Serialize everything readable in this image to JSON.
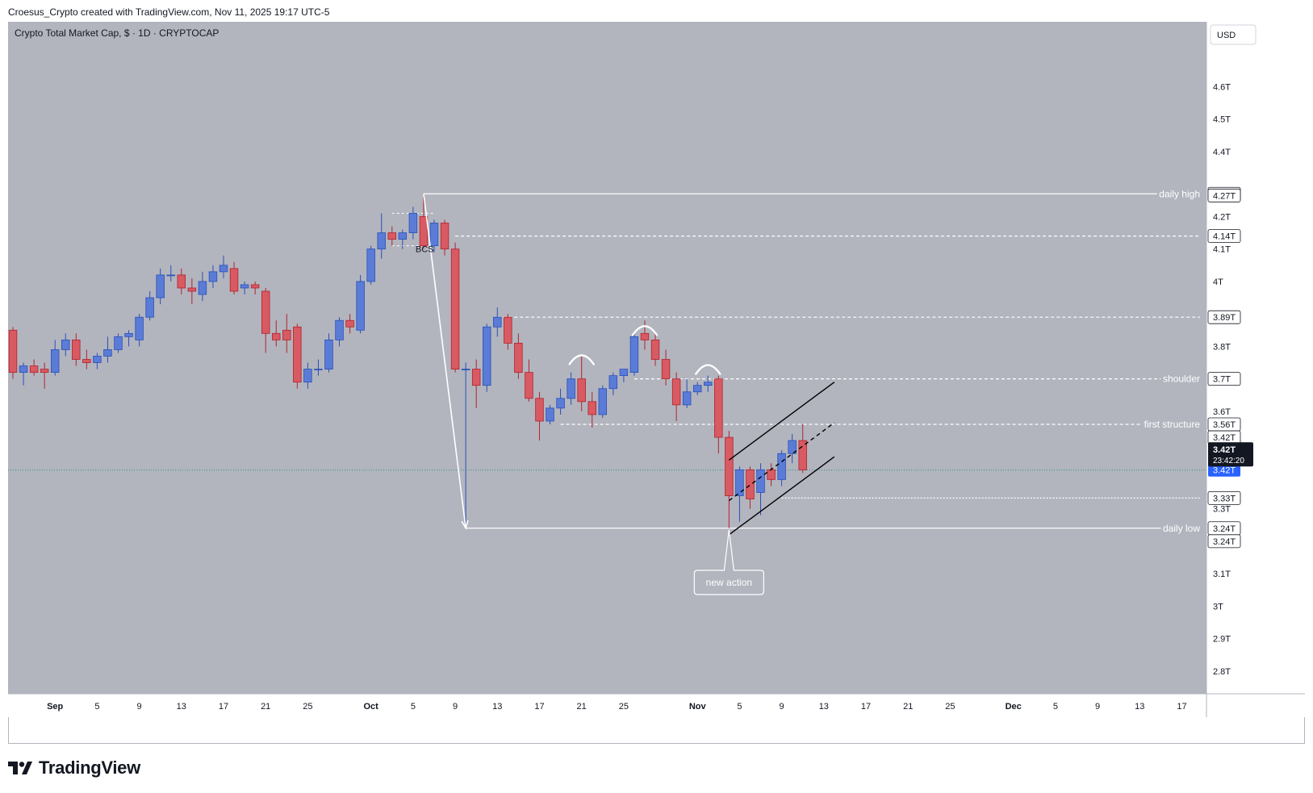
{
  "header": {
    "caption": "Croesus_Crypto created with TradingView.com, Nov 11, 2025 19:17 UTC-5"
  },
  "footer": {
    "brand": "TradingView"
  },
  "colors": {
    "background": "#b2b5be",
    "bull_fill": "#5b7cd6",
    "bull_line": "#2a4fb8",
    "bear_fill": "#d85a62",
    "bear_line": "#b2222c",
    "level_line": "#ffffff",
    "channel": "#000000",
    "current_price_badge": "#2962ff",
    "countdown_badge": "#131722"
  },
  "chart_data": {
    "type": "candlestick",
    "title": "Crypto Total Market Cap, $ · 1D · CRYPTOCAP",
    "currency_button": "USD",
    "ylim": [
      2.73,
      4.8
    ],
    "y_ticks": [
      {
        "value": 4.6,
        "label": "4.6T"
      },
      {
        "value": 4.5,
        "label": "4.5T"
      },
      {
        "value": 4.4,
        "label": "4.4T"
      },
      {
        "value": 4.2,
        "label": "4.2T"
      },
      {
        "value": 4.1,
        "label": "4.1T"
      },
      {
        "value": 4.0,
        "label": "4T"
      },
      {
        "value": 3.8,
        "label": "3.8T"
      },
      {
        "value": 3.6,
        "label": "3.6T"
      },
      {
        "value": 3.3,
        "label": "3.3T"
      },
      {
        "value": 3.1,
        "label": "3.1T"
      },
      {
        "value": 3.0,
        "label": "3T"
      },
      {
        "value": 2.9,
        "label": "2.9T"
      },
      {
        "value": 2.8,
        "label": "2.8T"
      }
    ],
    "x_ticks": [
      {
        "date": "2025-09-01",
        "label": "Sep"
      },
      {
        "date": "2025-09-05",
        "label": "5"
      },
      {
        "date": "2025-09-09",
        "label": "9"
      },
      {
        "date": "2025-09-13",
        "label": "13"
      },
      {
        "date": "2025-09-17",
        "label": "17"
      },
      {
        "date": "2025-09-21",
        "label": "21"
      },
      {
        "date": "2025-09-25",
        "label": "25"
      },
      {
        "date": "2025-10-01",
        "label": "Oct"
      },
      {
        "date": "2025-10-05",
        "label": "5"
      },
      {
        "date": "2025-10-09",
        "label": "9"
      },
      {
        "date": "2025-10-13",
        "label": "13"
      },
      {
        "date": "2025-10-17",
        "label": "17"
      },
      {
        "date": "2025-10-21",
        "label": "21"
      },
      {
        "date": "2025-10-25",
        "label": "25"
      },
      {
        "date": "2025-11-01",
        "label": "Nov"
      },
      {
        "date": "2025-11-05",
        "label": "5"
      },
      {
        "date": "2025-11-09",
        "label": "9"
      },
      {
        "date": "2025-11-13",
        "label": "13"
      },
      {
        "date": "2025-11-17",
        "label": "17"
      },
      {
        "date": "2025-11-21",
        "label": "21"
      },
      {
        "date": "2025-11-25",
        "label": "25"
      },
      {
        "date": "2025-12-01",
        "label": "Dec"
      },
      {
        "date": "2025-12-05",
        "label": "5"
      },
      {
        "date": "2025-12-09",
        "label": "9"
      },
      {
        "date": "2025-12-13",
        "label": "13"
      },
      {
        "date": "2025-12-17",
        "label": "17"
      }
    ],
    "candles": [
      {
        "date": "2025-08-28",
        "open": 3.85,
        "high": 3.86,
        "low": 3.7,
        "close": 3.72
      },
      {
        "date": "2025-08-29",
        "open": 3.72,
        "high": 3.75,
        "low": 3.68,
        "close": 3.74
      },
      {
        "date": "2025-08-30",
        "open": 3.74,
        "high": 3.76,
        "low": 3.71,
        "close": 3.72
      },
      {
        "date": "2025-08-31",
        "open": 3.73,
        "high": 3.75,
        "low": 3.67,
        "close": 3.72
      },
      {
        "date": "2025-09-01",
        "open": 3.72,
        "high": 3.82,
        "low": 3.71,
        "close": 3.79
      },
      {
        "date": "2025-09-02",
        "open": 3.79,
        "high": 3.84,
        "low": 3.77,
        "close": 3.82
      },
      {
        "date": "2025-09-03",
        "open": 3.82,
        "high": 3.84,
        "low": 3.74,
        "close": 3.76
      },
      {
        "date": "2025-09-04",
        "open": 3.76,
        "high": 3.79,
        "low": 3.73,
        "close": 3.75
      },
      {
        "date": "2025-09-05",
        "open": 3.75,
        "high": 3.78,
        "low": 3.73,
        "close": 3.77
      },
      {
        "date": "2025-09-06",
        "open": 3.77,
        "high": 3.83,
        "low": 3.75,
        "close": 3.79
      },
      {
        "date": "2025-09-07",
        "open": 3.79,
        "high": 3.84,
        "low": 3.78,
        "close": 3.83
      },
      {
        "date": "2025-09-08",
        "open": 3.83,
        "high": 3.85,
        "low": 3.8,
        "close": 3.84
      },
      {
        "date": "2025-09-09",
        "open": 3.82,
        "high": 3.9,
        "low": 3.8,
        "close": 3.89
      },
      {
        "date": "2025-09-10",
        "open": 3.89,
        "high": 3.97,
        "low": 3.88,
        "close": 3.95
      },
      {
        "date": "2025-09-11",
        "open": 3.95,
        "high": 4.04,
        "low": 3.93,
        "close": 4.02
      },
      {
        "date": "2025-09-12",
        "open": 4.02,
        "high": 4.05,
        "low": 4.0,
        "close": 4.02
      },
      {
        "date": "2025-09-13",
        "open": 4.02,
        "high": 4.04,
        "low": 3.96,
        "close": 3.98
      },
      {
        "date": "2025-09-14",
        "open": 3.98,
        "high": 4.01,
        "low": 3.93,
        "close": 3.97
      },
      {
        "date": "2025-09-15",
        "open": 3.96,
        "high": 4.03,
        "low": 3.94,
        "close": 4.0
      },
      {
        "date": "2025-09-16",
        "open": 4.0,
        "high": 4.05,
        "low": 3.98,
        "close": 4.03
      },
      {
        "date": "2025-09-17",
        "open": 4.03,
        "high": 4.08,
        "low": 4.01,
        "close": 4.05
      },
      {
        "date": "2025-09-18",
        "open": 4.04,
        "high": 4.06,
        "low": 3.96,
        "close": 3.97
      },
      {
        "date": "2025-09-19",
        "open": 3.98,
        "high": 4.0,
        "low": 3.96,
        "close": 3.99
      },
      {
        "date": "2025-09-20",
        "open": 3.99,
        "high": 4.0,
        "low": 3.96,
        "close": 3.98
      },
      {
        "date": "2025-09-21",
        "open": 3.97,
        "high": 3.98,
        "low": 3.78,
        "close": 3.84
      },
      {
        "date": "2025-09-22",
        "open": 3.84,
        "high": 3.88,
        "low": 3.8,
        "close": 3.82
      },
      {
        "date": "2025-09-23",
        "open": 3.85,
        "high": 3.9,
        "low": 3.78,
        "close": 3.82
      },
      {
        "date": "2025-09-24",
        "open": 3.86,
        "high": 3.87,
        "low": 3.67,
        "close": 3.69
      },
      {
        "date": "2025-09-25",
        "open": 3.69,
        "high": 3.75,
        "low": 3.67,
        "close": 3.73
      },
      {
        "date": "2025-09-26",
        "open": 3.73,
        "high": 3.76,
        "low": 3.71,
        "close": 3.73
      },
      {
        "date": "2025-09-27",
        "open": 3.73,
        "high": 3.84,
        "low": 3.72,
        "close": 3.82
      },
      {
        "date": "2025-09-28",
        "open": 3.82,
        "high": 3.89,
        "low": 3.8,
        "close": 3.88
      },
      {
        "date": "2025-09-29",
        "open": 3.88,
        "high": 3.9,
        "low": 3.84,
        "close": 3.86
      },
      {
        "date": "2025-09-30",
        "open": 3.85,
        "high": 4.02,
        "low": 3.84,
        "close": 4.0
      },
      {
        "date": "2025-10-01",
        "open": 4.0,
        "high": 4.11,
        "low": 3.99,
        "close": 4.1
      },
      {
        "date": "2025-10-02",
        "open": 4.1,
        "high": 4.21,
        "low": 4.07,
        "close": 4.15
      },
      {
        "date": "2025-10-03",
        "open": 4.15,
        "high": 4.17,
        "low": 4.11,
        "close": 4.13
      },
      {
        "date": "2025-10-04",
        "open": 4.13,
        "high": 4.16,
        "low": 4.1,
        "close": 4.15
      },
      {
        "date": "2025-10-05",
        "open": 4.15,
        "high": 4.23,
        "low": 4.13,
        "close": 4.21
      },
      {
        "date": "2025-10-06",
        "open": 4.2,
        "high": 4.27,
        "low": 4.1,
        "close": 4.11
      },
      {
        "date": "2025-10-07",
        "open": 4.11,
        "high": 4.19,
        "low": 4.09,
        "close": 4.18
      },
      {
        "date": "2025-10-08",
        "open": 4.18,
        "high": 4.19,
        "low": 4.08,
        "close": 4.1
      },
      {
        "date": "2025-10-09",
        "open": 4.1,
        "high": 4.12,
        "low": 3.72,
        "close": 3.73
      },
      {
        "date": "2025-10-10",
        "open": 3.73,
        "high": 3.75,
        "low": 3.24,
        "close": 3.73
      },
      {
        "date": "2025-10-11",
        "open": 3.73,
        "high": 3.76,
        "low": 3.61,
        "close": 3.68
      },
      {
        "date": "2025-10-12",
        "open": 3.68,
        "high": 3.87,
        "low": 3.66,
        "close": 3.86
      },
      {
        "date": "2025-10-13",
        "open": 3.86,
        "high": 3.92,
        "low": 3.83,
        "close": 3.89
      },
      {
        "date": "2025-10-14",
        "open": 3.89,
        "high": 3.9,
        "low": 3.79,
        "close": 3.81
      },
      {
        "date": "2025-10-15",
        "open": 3.81,
        "high": 3.84,
        "low": 3.7,
        "close": 3.72
      },
      {
        "date": "2025-10-16",
        "open": 3.72,
        "high": 3.76,
        "low": 3.63,
        "close": 3.64
      },
      {
        "date": "2025-10-17",
        "open": 3.64,
        "high": 3.66,
        "low": 3.51,
        "close": 3.57
      },
      {
        "date": "2025-10-18",
        "open": 3.57,
        "high": 3.62,
        "low": 3.56,
        "close": 3.61
      },
      {
        "date": "2025-10-19",
        "open": 3.61,
        "high": 3.67,
        "low": 3.59,
        "close": 3.64
      },
      {
        "date": "2025-10-20",
        "open": 3.64,
        "high": 3.72,
        "low": 3.62,
        "close": 3.7
      },
      {
        "date": "2025-10-21",
        "open": 3.7,
        "high": 3.77,
        "low": 3.6,
        "close": 3.63
      },
      {
        "date": "2025-10-22",
        "open": 3.63,
        "high": 3.66,
        "low": 3.55,
        "close": 3.59
      },
      {
        "date": "2025-10-23",
        "open": 3.59,
        "high": 3.68,
        "low": 3.58,
        "close": 3.67
      },
      {
        "date": "2025-10-24",
        "open": 3.67,
        "high": 3.72,
        "low": 3.65,
        "close": 3.71
      },
      {
        "date": "2025-10-25",
        "open": 3.71,
        "high": 3.73,
        "low": 3.69,
        "close": 3.73
      },
      {
        "date": "2025-10-26",
        "open": 3.72,
        "high": 3.84,
        "low": 3.71,
        "close": 3.83
      },
      {
        "date": "2025-10-27",
        "open": 3.84,
        "high": 3.88,
        "low": 3.79,
        "close": 3.82
      },
      {
        "date": "2025-10-28",
        "open": 3.82,
        "high": 3.84,
        "low": 3.74,
        "close": 3.76
      },
      {
        "date": "2025-10-29",
        "open": 3.76,
        "high": 3.79,
        "low": 3.68,
        "close": 3.7
      },
      {
        "date": "2025-10-30",
        "open": 3.7,
        "high": 3.72,
        "low": 3.57,
        "close": 3.62
      },
      {
        "date": "2025-10-31",
        "open": 3.62,
        "high": 3.7,
        "low": 3.61,
        "close": 3.66
      },
      {
        "date": "2025-11-01",
        "open": 3.66,
        "high": 3.69,
        "low": 3.65,
        "close": 3.68
      },
      {
        "date": "2025-11-02",
        "open": 3.68,
        "high": 3.71,
        "low": 3.66,
        "close": 3.69
      },
      {
        "date": "2025-11-03",
        "open": 3.7,
        "high": 3.71,
        "low": 3.47,
        "close": 3.52
      },
      {
        "date": "2025-11-04",
        "open": 3.52,
        "high": 3.54,
        "low": 3.24,
        "close": 3.34
      },
      {
        "date": "2025-11-05",
        "open": 3.34,
        "high": 3.43,
        "low": 3.26,
        "close": 3.42
      },
      {
        "date": "2025-11-06",
        "open": 3.42,
        "high": 3.43,
        "low": 3.3,
        "close": 3.33
      },
      {
        "date": "2025-11-07",
        "open": 3.35,
        "high": 3.44,
        "low": 3.28,
        "close": 3.42
      },
      {
        "date": "2025-11-08",
        "open": 3.42,
        "high": 3.44,
        "low": 3.37,
        "close": 3.39
      },
      {
        "date": "2025-11-09",
        "open": 3.39,
        "high": 3.48,
        "low": 3.37,
        "close": 3.47
      },
      {
        "date": "2025-11-10",
        "open": 3.47,
        "high": 3.53,
        "low": 3.44,
        "close": 3.51
      },
      {
        "date": "2025-11-11",
        "open": 3.51,
        "high": 3.56,
        "low": 3.41,
        "close": 3.42
      }
    ],
    "price_badges": [
      {
        "value": 4.27,
        "label": "4.27T",
        "style": "white"
      },
      {
        "value": 4.265,
        "label": "4.27T",
        "style": "white"
      },
      {
        "value": 4.14,
        "label": "4.14T",
        "style": "white"
      },
      {
        "value": 3.89,
        "label": "3.89T",
        "style": "white"
      },
      {
        "value": 3.7,
        "label": "3.7T",
        "style": "white"
      },
      {
        "value": 3.56,
        "label": "3.56T",
        "style": "white"
      },
      {
        "value": 3.52,
        "label": "3.42T",
        "style": "white"
      },
      {
        "value": 3.333,
        "label": "3.33T",
        "style": "white"
      },
      {
        "value": 3.24,
        "label": "3.24T",
        "style": "white"
      },
      {
        "value": 3.2,
        "label": "3.24T",
        "style": "white"
      },
      {
        "value": 3.419,
        "label": "3.42T",
        "style": "blue"
      }
    ],
    "countdown_badge": {
      "value": 3.47,
      "price": "3.42T",
      "time": "23:42:20"
    },
    "level_labels": [
      {
        "value": 4.27,
        "text": "daily high"
      },
      {
        "value": 3.7,
        "text": "shoulder"
      },
      {
        "value": 3.56,
        "text": "first structure"
      },
      {
        "value": 3.24,
        "text": "daily low"
      }
    ],
    "drawings": {
      "daily_high": {
        "start": "2025-10-06",
        "end": "2025-12-17",
        "value": 4.27
      },
      "daily_low": {
        "start": "2025-10-10",
        "end": "2025-12-17",
        "value": 3.24
      },
      "resistance_414": {
        "start": "2025-10-09",
        "end": "2025-12-17",
        "value": 4.14
      },
      "resistance_389": {
        "start": "2025-10-13",
        "end": "2025-12-17",
        "value": 3.89
      },
      "shoulder_line": {
        "start": "2025-10-26",
        "end": "2025-12-17",
        "value": 3.7
      },
      "structure_line": {
        "start": "2025-10-19",
        "end": "2025-12-17",
        "value": 3.56
      },
      "support_333": {
        "start": "2025-11-09",
        "end": "2025-12-17",
        "value": 3.333
      },
      "current_price_line": {
        "value": 3.419
      },
      "bcs_label": {
        "date": "2025-10-06",
        "value": 4.1,
        "text": "BCS"
      },
      "bcs_range": {
        "start": "2025-10-03",
        "end": "2025-10-07",
        "top": 4.21,
        "bottom": 4.11
      },
      "drop_arrow": {
        "from_date": "2025-10-06",
        "from_value": 4.27,
        "to_date": "2025-10-10",
        "to_value": 3.24
      },
      "arcs": [
        {
          "date": "2025-10-21",
          "value": 3.77
        },
        {
          "date": "2025-10-27",
          "value": 3.86
        },
        {
          "date": "2025-11-02",
          "value": 3.74
        }
      ],
      "channel_upper": {
        "from_date": "2025-11-04",
        "from_value": 3.45,
        "to_date": "2025-11-14",
        "to_value": 3.69
      },
      "channel_mid": {
        "from_date": "2025-11-04",
        "from_value": 3.325,
        "to_date": "2025-11-14",
        "to_value": 3.565
      },
      "channel_lower": {
        "from_date": "2025-11-04",
        "from_value": 3.22,
        "to_date": "2025-11-14",
        "to_value": 3.46
      },
      "annotation": {
        "date": "2025-11-04",
        "value": 3.24,
        "text": "new action"
      }
    }
  }
}
